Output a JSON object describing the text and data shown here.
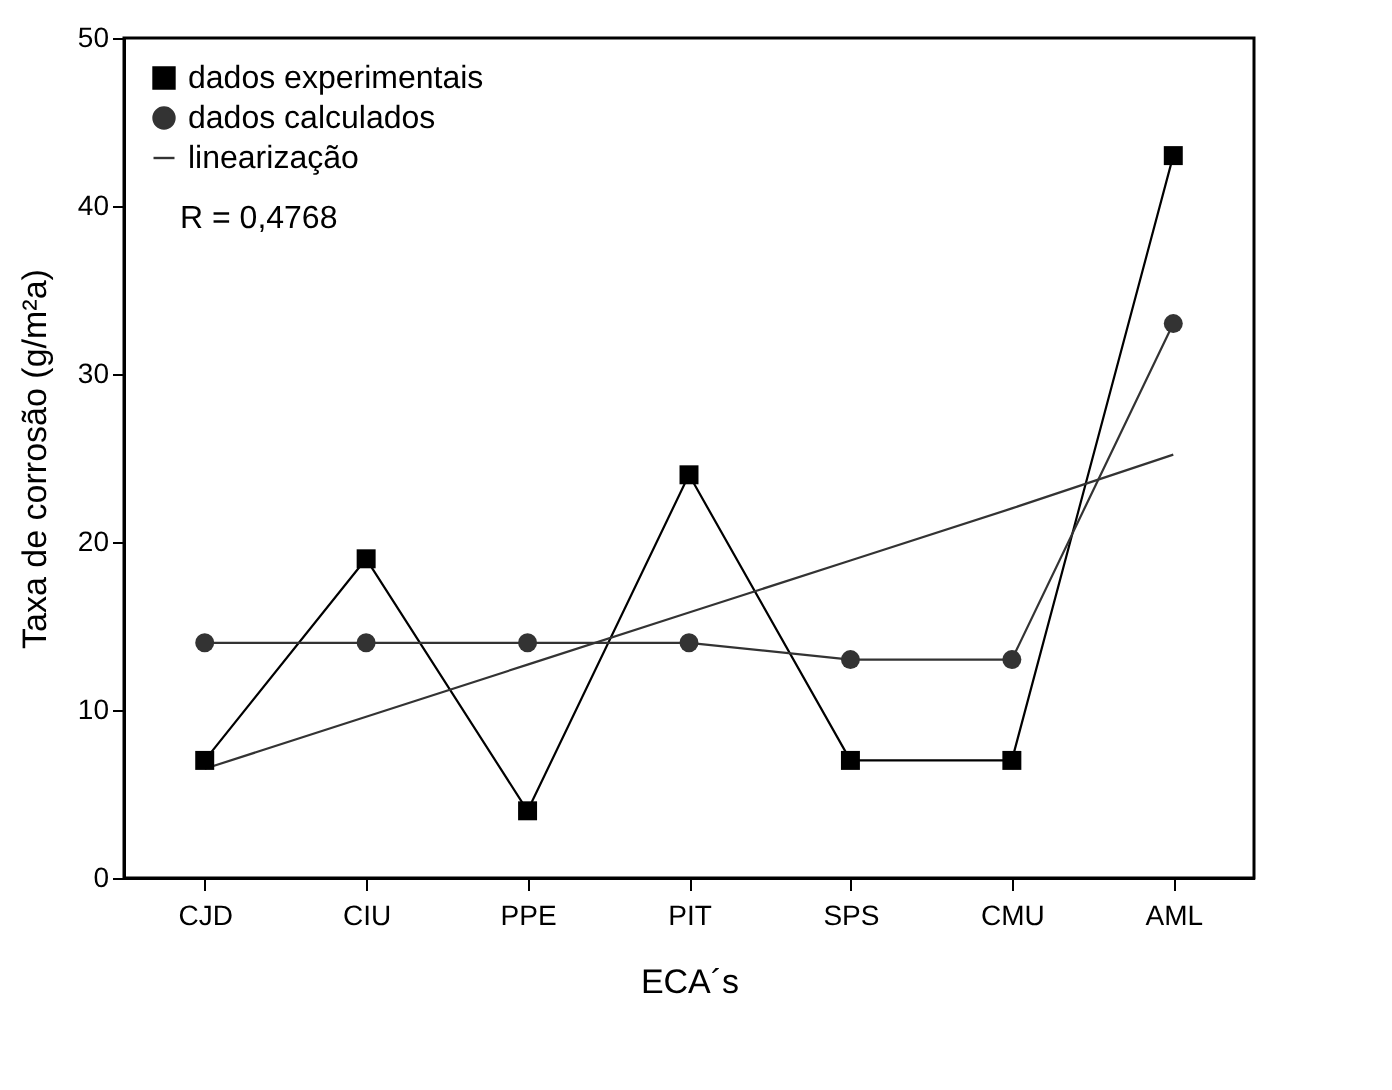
{
  "chart_data": {
    "type": "line",
    "xlabel": "ECA´s",
    "ylabel": "Taxa de corrosão (g/m²a)",
    "categories": [
      "CJD",
      "CIU",
      "PPE",
      "PIT",
      "SPS",
      "CMU",
      "AML"
    ],
    "series": [
      {
        "name": "dados experimentais",
        "color": "#000000",
        "marker": "square",
        "values": [
          7,
          19,
          4,
          24,
          7,
          7,
          43
        ]
      },
      {
        "name": "dados calculados",
        "color": "#333333",
        "marker": "circle",
        "values": [
          14,
          14,
          14,
          14,
          13,
          13,
          33
        ]
      },
      {
        "name": "linearização",
        "color": "#333333",
        "marker": "none",
        "values": [
          6.5,
          9.6,
          12.7,
          15.8,
          18.9,
          22.0,
          25.2
        ]
      }
    ],
    "ylim": [
      0,
      50
    ],
    "yticks": [
      0,
      10,
      20,
      30,
      40,
      50
    ],
    "annotations": [
      "R = 0,4768"
    ],
    "legend": "top left",
    "grid": false
  }
}
